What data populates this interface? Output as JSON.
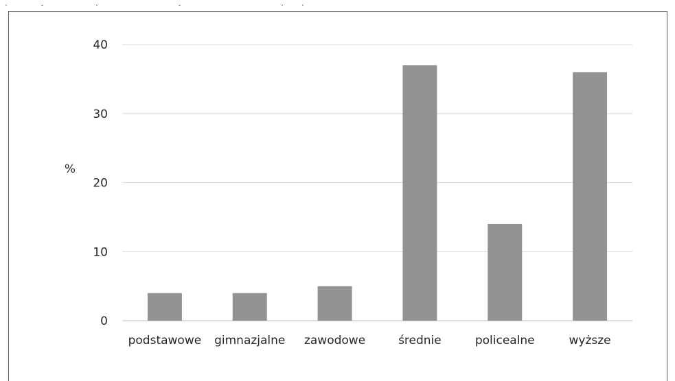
{
  "chart_data": {
    "type": "bar",
    "categories": [
      "podstawowe",
      "gimnazjalne",
      "zawodowe",
      "średnie",
      "policealne",
      "wyższe"
    ],
    "values": [
      4,
      4,
      5,
      37,
      14,
      36
    ],
    "ylabel": "%",
    "xlabel": "",
    "title": "",
    "ylim": [
      0,
      40
    ],
    "yticks": [
      "0",
      "10",
      "20",
      "30",
      "40"
    ],
    "bar_color": "#939393",
    "grid_color": "#d9d9d9",
    "grid": true,
    "legend": false
  }
}
